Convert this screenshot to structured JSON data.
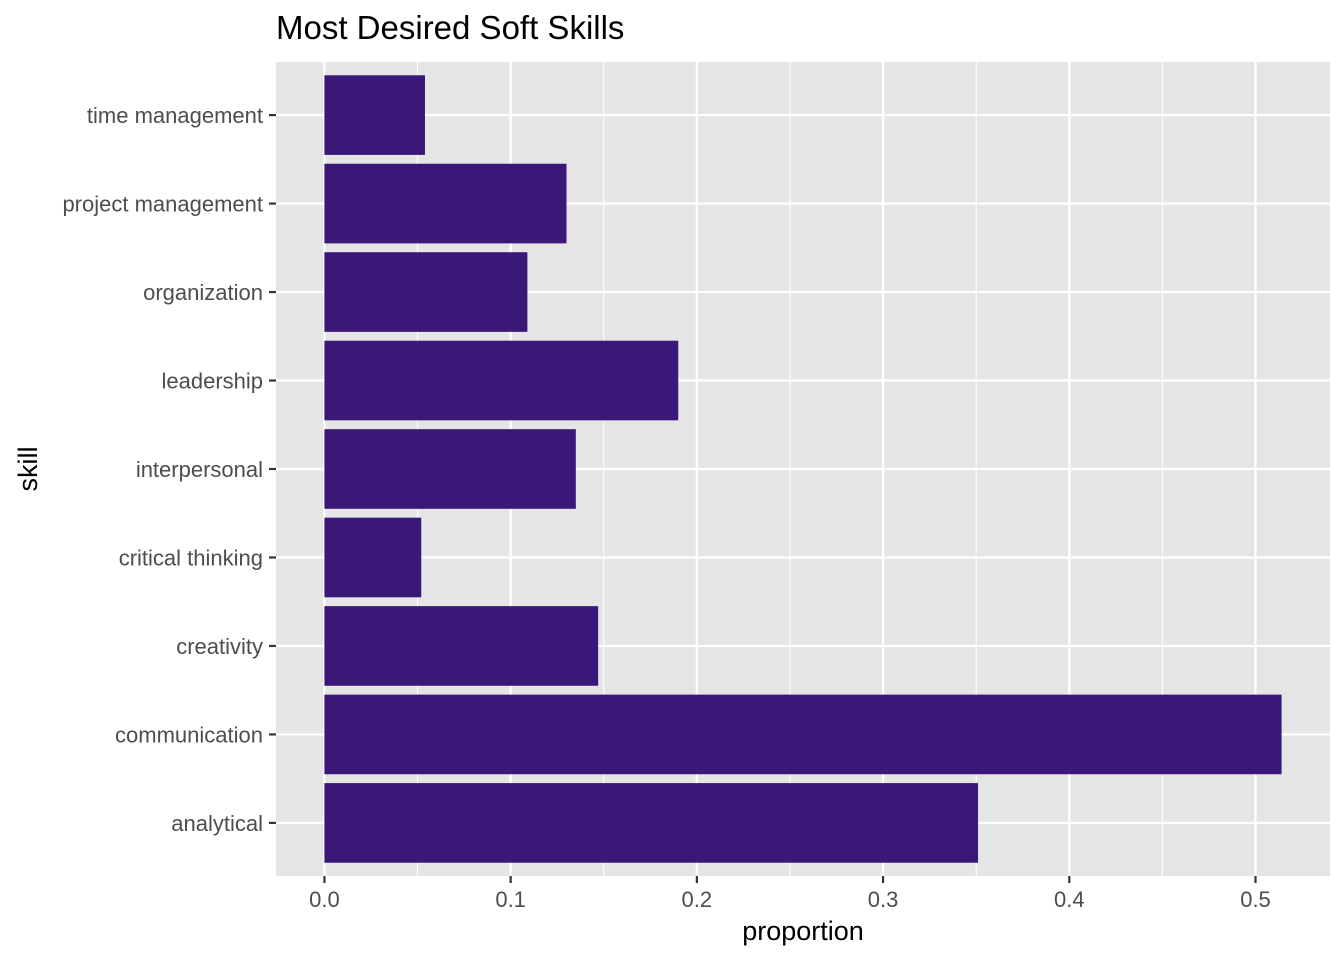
{
  "chart_data": {
    "type": "bar",
    "orientation": "horizontal",
    "title": "Most Desired Soft Skills",
    "xlabel": "proportion",
    "ylabel": "skill",
    "categories": [
      "analytical",
      "communication",
      "creativity",
      "critical thinking",
      "interpersonal",
      "leadership",
      "organization",
      "project management",
      "time management"
    ],
    "values": [
      0.351,
      0.514,
      0.147,
      0.052,
      0.135,
      0.19,
      0.109,
      0.13,
      0.054
    ],
    "xlim": [
      -0.026,
      0.54
    ],
    "xticks": [
      0.0,
      0.1,
      0.2,
      0.3,
      0.4,
      0.5
    ],
    "xtick_labels": [
      "0.0",
      "0.1",
      "0.2",
      "0.3",
      "0.4",
      "0.5"
    ],
    "grid": true,
    "legend": "none",
    "colors": {
      "bar": "#3a1878",
      "panel": "#e5e5e5",
      "grid": "#ffffff"
    }
  }
}
